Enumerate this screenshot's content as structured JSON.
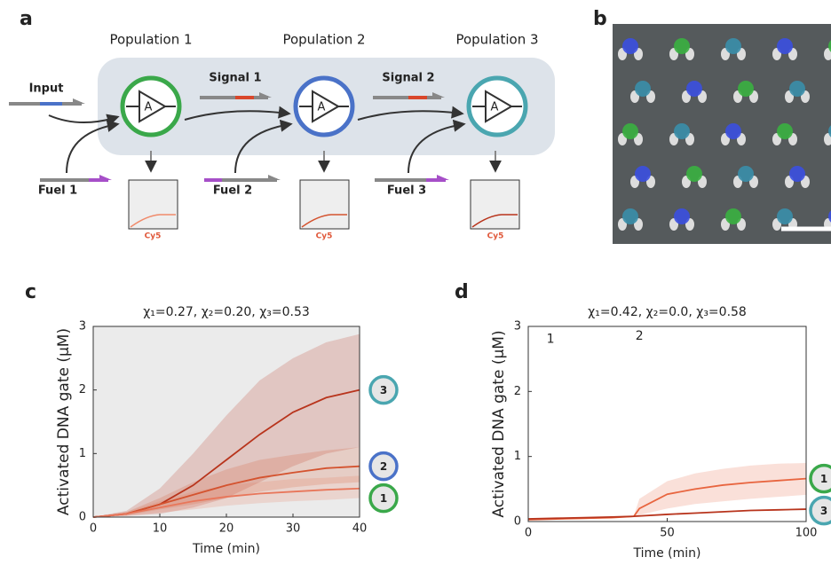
{
  "panel_labels": [
    "a",
    "b",
    "c",
    "d"
  ],
  "diagram": {
    "populations": [
      "Population 1",
      "Population 2",
      "Population 3"
    ],
    "input": "Input",
    "signals": [
      "Signal 1",
      "Signal 2"
    ],
    "fuels": [
      "Fuel 1",
      "Fuel 2",
      "Fuel 3"
    ],
    "gate_symbol": "A",
    "readout": "Cy5"
  },
  "chart_data": [
    {
      "type": "line",
      "title": "χ₁=0.27, χ₂=0.20, χ₃=0.53",
      "xlabel": "Time (min)",
      "ylabel": "Activated DNA gate (μM)",
      "background": "#ebebeb",
      "x": [
        0,
        5,
        10,
        15,
        20,
        25,
        30,
        35,
        40
      ],
      "xlim": [
        0,
        40
      ],
      "xticks": [
        0,
        10,
        20,
        30,
        40
      ],
      "ylim": [
        0,
        3
      ],
      "yticks": [
        0,
        1,
        2,
        3
      ],
      "series": [
        {
          "name": "3",
          "color": "#b8341c",
          "ring_color": "#4aa6b0",
          "values": [
            0,
            0.05,
            0.2,
            0.5,
            0.9,
            1.3,
            1.65,
            1.88,
            2.0
          ],
          "upper": [
            0,
            0.1,
            0.45,
            1.0,
            1.6,
            2.15,
            2.5,
            2.75,
            2.88
          ],
          "lower": [
            0,
            0.02,
            0.05,
            0.15,
            0.3,
            0.55,
            0.8,
            1.0,
            1.1
          ]
        },
        {
          "name": "2",
          "color": "#d4532f",
          "ring_color": "#4a72c8",
          "values": [
            0,
            0.05,
            0.2,
            0.35,
            0.5,
            0.62,
            0.7,
            0.77,
            0.8
          ],
          "upper": [
            0,
            0.08,
            0.3,
            0.55,
            0.75,
            0.9,
            0.98,
            1.05,
            1.1
          ],
          "lower": [
            0,
            0.03,
            0.12,
            0.2,
            0.3,
            0.4,
            0.47,
            0.52,
            0.55
          ]
        },
        {
          "name": "1",
          "color": "#e8765a",
          "ring_color": "#3aa84a",
          "values": [
            0,
            0.05,
            0.15,
            0.25,
            0.32,
            0.37,
            0.4,
            0.43,
            0.45
          ],
          "upper": [
            0,
            0.08,
            0.25,
            0.4,
            0.5,
            0.55,
            0.6,
            0.62,
            0.65
          ],
          "lower": [
            0,
            0.02,
            0.07,
            0.12,
            0.18,
            0.22,
            0.25,
            0.27,
            0.3
          ]
        }
      ]
    },
    {
      "type": "line",
      "title": "χ₁=0.42, χ₂=0.0, χ₃=0.58",
      "xlabel": "Time (min)",
      "ylabel": "Activated DNA gate (μM)",
      "background": "#ffffff",
      "x": [
        0,
        10,
        20,
        30,
        38,
        40,
        50,
        60,
        70,
        80,
        90,
        100
      ],
      "xlim": [
        0,
        100
      ],
      "xticks": [
        0,
        50,
        100
      ],
      "ylim": [
        0,
        3
      ],
      "yticks": [
        0,
        1,
        2,
        3
      ],
      "annotations": [
        {
          "text": "1",
          "x": 8,
          "y": 2.8
        },
        {
          "text": "2",
          "x": 40,
          "y": 2.85
        }
      ],
      "series": [
        {
          "name": "1",
          "color": "#e8653f",
          "ring_color": "#3aa84a",
          "values": [
            0.03,
            0.04,
            0.05,
            0.06,
            0.08,
            0.2,
            0.42,
            0.5,
            0.56,
            0.6,
            0.63,
            0.66
          ],
          "upper": [
            0.05,
            0.05,
            0.06,
            0.07,
            0.09,
            0.35,
            0.62,
            0.74,
            0.81,
            0.86,
            0.89,
            0.9
          ],
          "lower": [
            0.02,
            0.03,
            0.04,
            0.05,
            0.07,
            0.1,
            0.2,
            0.27,
            0.31,
            0.35,
            0.38,
            0.41
          ]
        },
        {
          "name": "3",
          "color": "#b8341c",
          "ring_color": "#4aa6b0",
          "values": [
            0.04,
            0.05,
            0.06,
            0.07,
            0.08,
            0.085,
            0.11,
            0.13,
            0.15,
            0.17,
            0.18,
            0.19
          ]
        }
      ]
    }
  ]
}
